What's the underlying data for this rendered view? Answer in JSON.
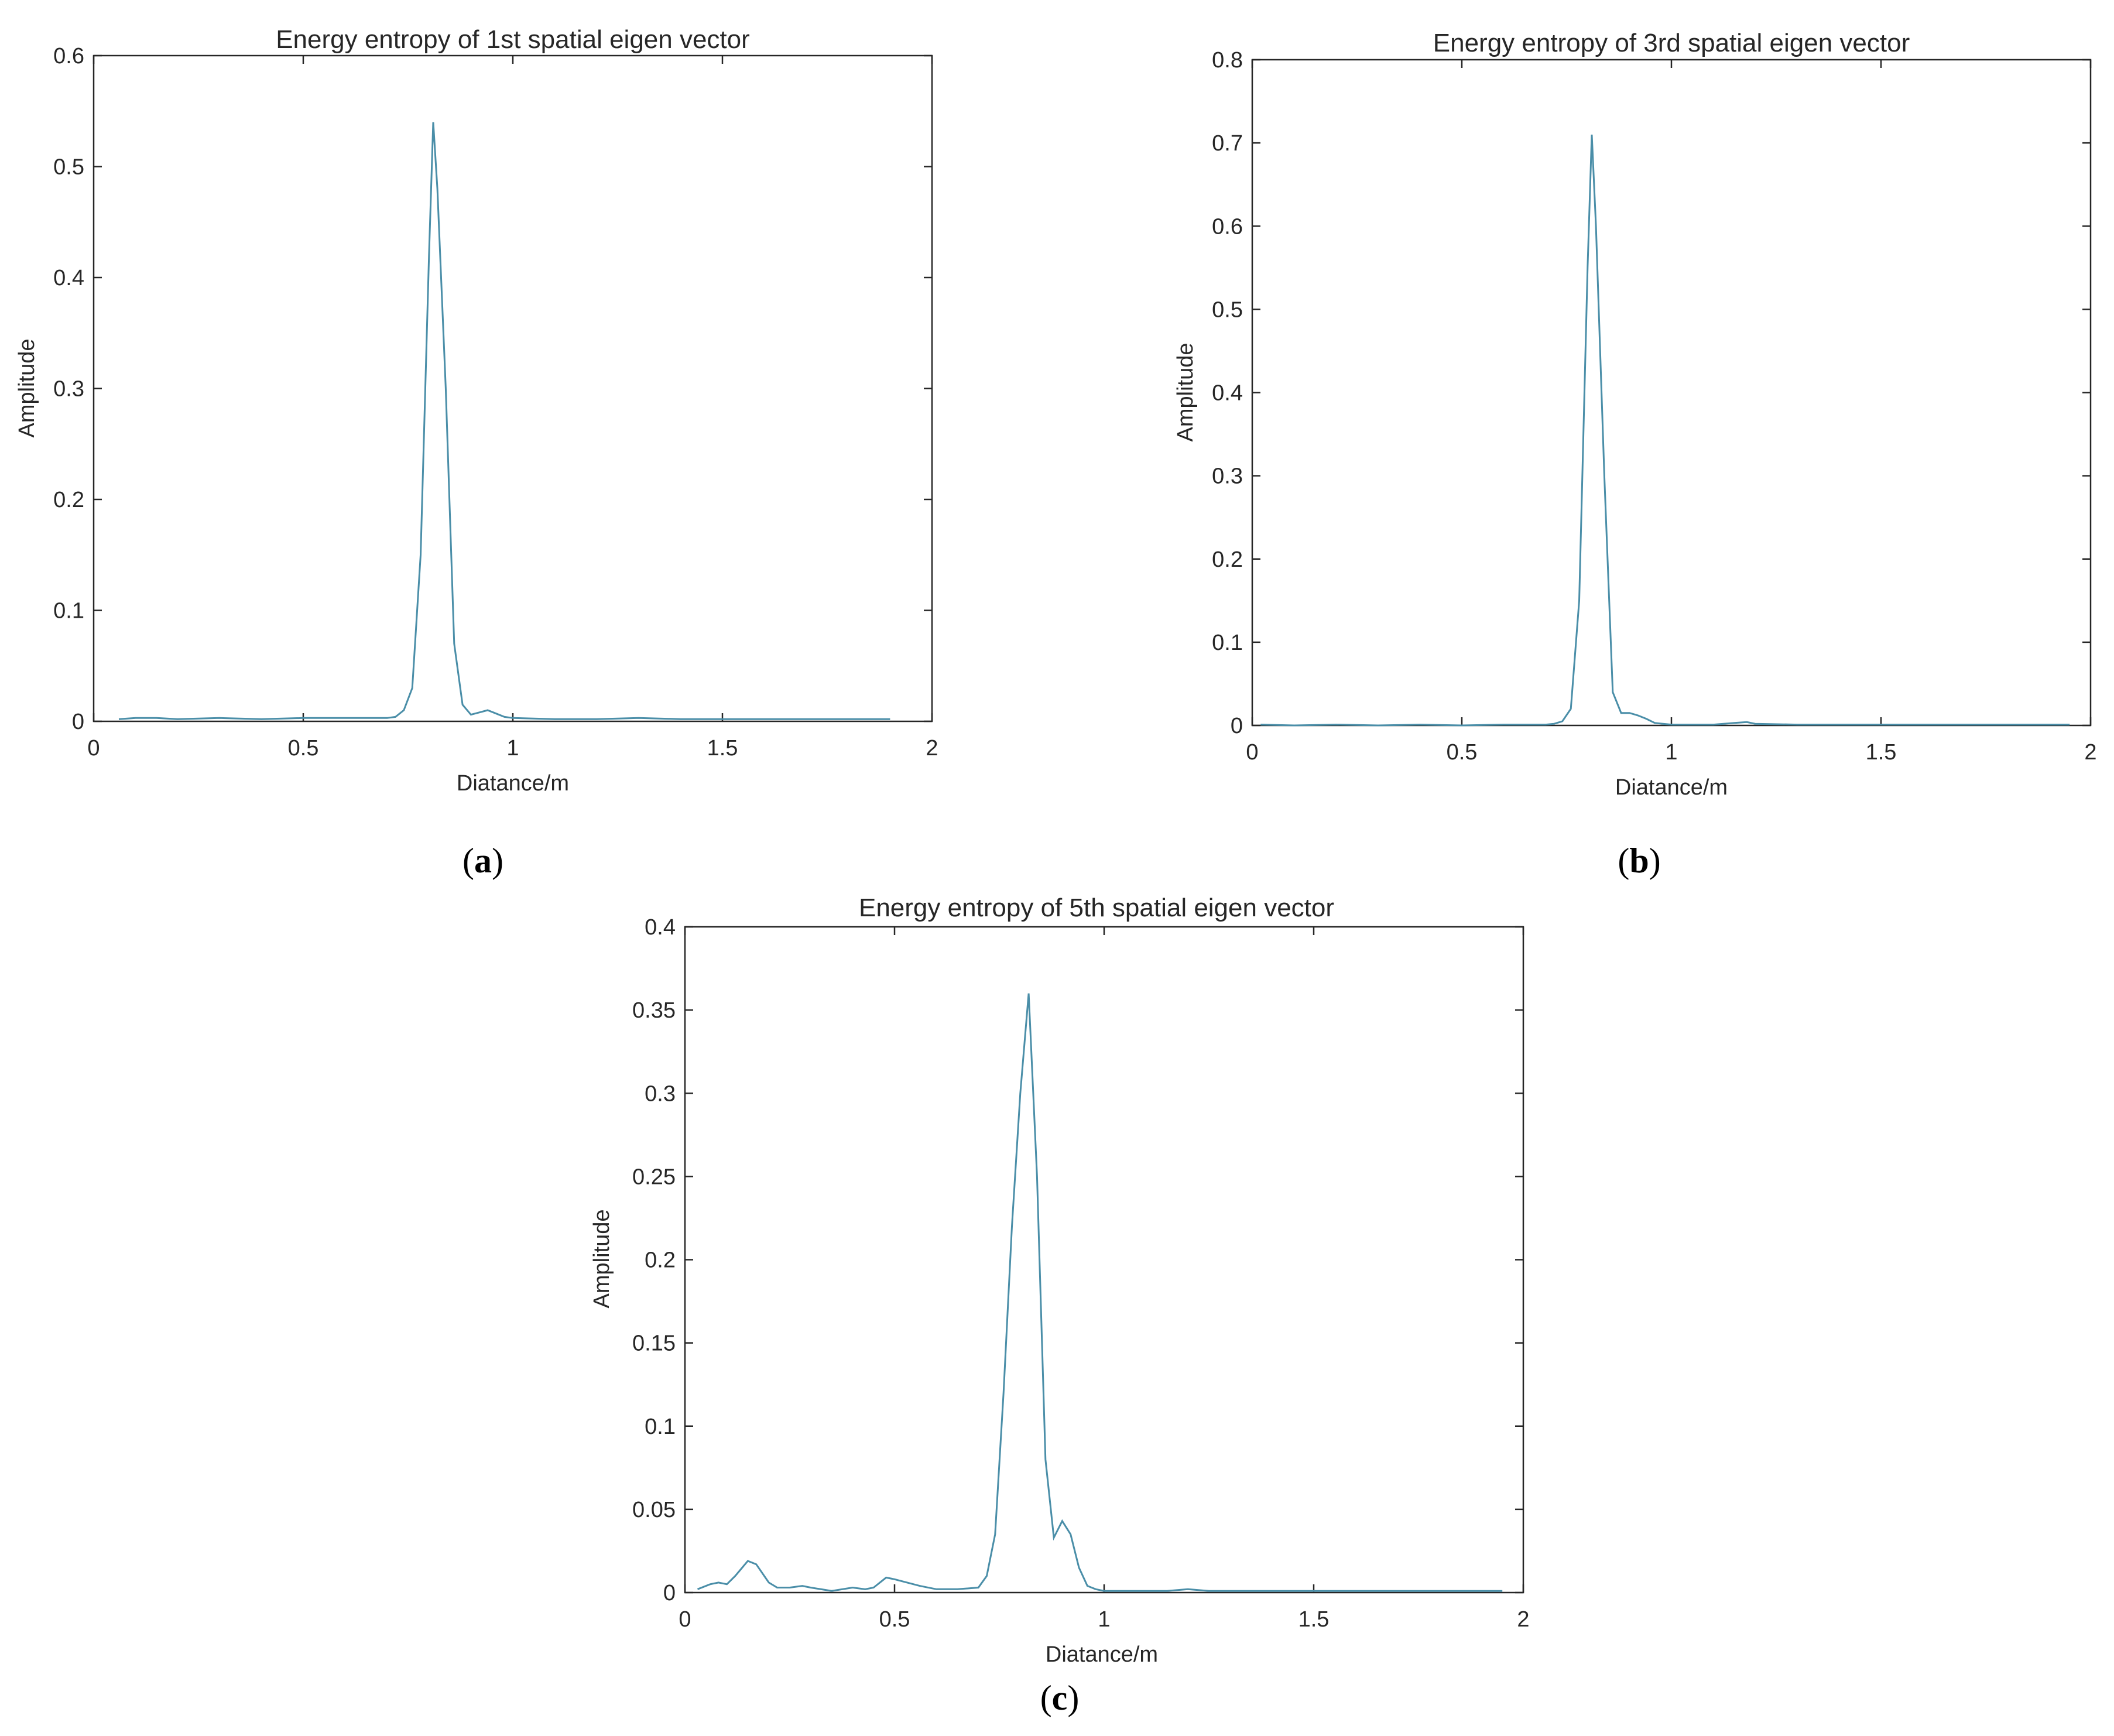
{
  "chart_data": [
    {
      "id": "a",
      "type": "line",
      "panel_label": "a",
      "title": "Energy entropy of 1st spatial eigen vector",
      "xlabel": "Diatance/m",
      "ylabel": "Amplitude",
      "xlim": [
        0,
        2
      ],
      "ylim": [
        0,
        0.6
      ],
      "xticks": [
        0,
        0.5,
        1,
        1.5,
        2
      ],
      "xtick_labels": [
        "0",
        "0.5",
        "1",
        "1.5",
        "2"
      ],
      "yticks": [
        0,
        0.1,
        0.2,
        0.3,
        0.4,
        0.5,
        0.6
      ],
      "ytick_labels": [
        "0",
        "0.1",
        "0.2",
        "0.3",
        "0.4",
        "0.5",
        "0.6"
      ],
      "grid": false,
      "line_color": "#4a8ea8",
      "series": [
        {
          "x": [
            0.06,
            0.1,
            0.15,
            0.2,
            0.3,
            0.4,
            0.5,
            0.6,
            0.65,
            0.7,
            0.72,
            0.74,
            0.76,
            0.78,
            0.8,
            0.81,
            0.82,
            0.84,
            0.86,
            0.88,
            0.9,
            0.92,
            0.94,
            0.96,
            0.98,
            1.0,
            1.1,
            1.2,
            1.3,
            1.4,
            1.5,
            1.6,
            1.7,
            1.8,
            1.9
          ],
          "y": [
            0.002,
            0.003,
            0.003,
            0.002,
            0.003,
            0.002,
            0.003,
            0.003,
            0.003,
            0.003,
            0.004,
            0.01,
            0.03,
            0.15,
            0.42,
            0.54,
            0.48,
            0.3,
            0.07,
            0.015,
            0.006,
            0.008,
            0.01,
            0.007,
            0.004,
            0.003,
            0.002,
            0.002,
            0.003,
            0.002,
            0.002,
            0.002,
            0.002,
            0.002,
            0.002
          ]
        }
      ]
    },
    {
      "id": "b",
      "type": "line",
      "panel_label": "b",
      "title": "Energy entropy of 3rd spatial eigen vector",
      "xlabel": "Diatance/m",
      "ylabel": "Amplitude",
      "xlim": [
        0,
        2
      ],
      "ylim": [
        0,
        0.8
      ],
      "xticks": [
        0,
        0.5,
        1,
        1.5,
        2
      ],
      "xtick_labels": [
        "0",
        "0.5",
        "1",
        "1.5",
        "2"
      ],
      "yticks": [
        0,
        0.1,
        0.2,
        0.3,
        0.4,
        0.5,
        0.6,
        0.7,
        0.8
      ],
      "ytick_labels": [
        "0",
        "0.1",
        "0.2",
        "0.3",
        "0.4",
        "0.5",
        "0.6",
        "0.7",
        "0.8"
      ],
      "grid": false,
      "line_color": "#4a8ea8",
      "series": [
        {
          "x": [
            0.02,
            0.1,
            0.2,
            0.3,
            0.4,
            0.5,
            0.6,
            0.7,
            0.72,
            0.74,
            0.76,
            0.78,
            0.8,
            0.81,
            0.82,
            0.84,
            0.86,
            0.88,
            0.9,
            0.92,
            0.94,
            0.96,
            0.98,
            1.0,
            1.05,
            1.1,
            1.15,
            1.18,
            1.2,
            1.3,
            1.4,
            1.5,
            1.6,
            1.7,
            1.8,
            1.9,
            1.95
          ],
          "y": [
            0.001,
            0.0,
            0.001,
            0.0,
            0.001,
            0.0,
            0.001,
            0.001,
            0.002,
            0.005,
            0.02,
            0.15,
            0.55,
            0.71,
            0.6,
            0.3,
            0.04,
            0.015,
            0.015,
            0.012,
            0.008,
            0.003,
            0.002,
            0.001,
            0.001,
            0.001,
            0.003,
            0.004,
            0.002,
            0.001,
            0.001,
            0.001,
            0.001,
            0.001,
            0.001,
            0.001,
            0.001
          ]
        }
      ]
    },
    {
      "id": "c",
      "type": "line",
      "panel_label": "c",
      "title": "Energy entropy of 5th spatial eigen vector",
      "xlabel": "Diatance/m",
      "ylabel": "Amplitude",
      "xlim": [
        0,
        2
      ],
      "ylim": [
        0,
        0.4
      ],
      "xticks": [
        0,
        0.5,
        1,
        1.5,
        2
      ],
      "xtick_labels": [
        "0",
        "0.5",
        "1",
        "1.5",
        "2"
      ],
      "yticks": [
        0,
        0.05,
        0.1,
        0.15,
        0.2,
        0.25,
        0.3,
        0.35,
        0.4
      ],
      "ytick_labels": [
        "0",
        "0.05",
        "0.1",
        "0.15",
        "0.2",
        "0.25",
        "0.3",
        "0.35",
        "0.4"
      ],
      "grid": false,
      "line_color": "#4a8ea8",
      "series": [
        {
          "x": [
            0.03,
            0.06,
            0.08,
            0.1,
            0.12,
            0.15,
            0.17,
            0.2,
            0.22,
            0.25,
            0.28,
            0.3,
            0.35,
            0.4,
            0.43,
            0.45,
            0.48,
            0.5,
            0.53,
            0.56,
            0.6,
            0.65,
            0.7,
            0.72,
            0.74,
            0.76,
            0.78,
            0.8,
            0.82,
            0.84,
            0.86,
            0.88,
            0.9,
            0.92,
            0.94,
            0.96,
            0.98,
            1.0,
            1.1,
            1.15,
            1.2,
            1.25,
            1.3,
            1.4,
            1.5,
            1.6,
            1.7,
            1.8,
            1.9,
            1.95
          ],
          "y": [
            0.002,
            0.005,
            0.006,
            0.005,
            0.01,
            0.019,
            0.017,
            0.006,
            0.003,
            0.003,
            0.004,
            0.003,
            0.001,
            0.003,
            0.002,
            0.003,
            0.009,
            0.008,
            0.006,
            0.004,
            0.002,
            0.002,
            0.003,
            0.01,
            0.035,
            0.12,
            0.22,
            0.3,
            0.36,
            0.25,
            0.08,
            0.033,
            0.043,
            0.035,
            0.015,
            0.004,
            0.002,
            0.001,
            0.001,
            0.001,
            0.002,
            0.001,
            0.001,
            0.001,
            0.001,
            0.001,
            0.001,
            0.001,
            0.001,
            0.001
          ]
        }
      ]
    }
  ]
}
